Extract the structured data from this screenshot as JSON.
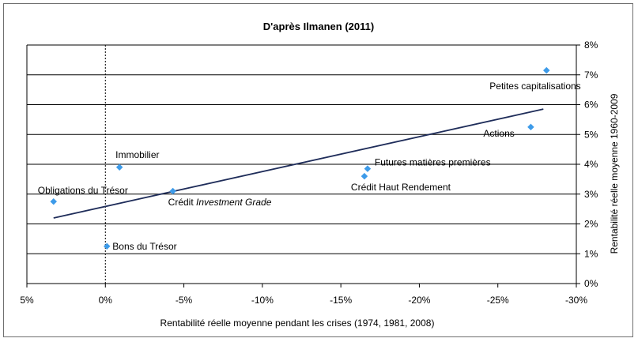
{
  "chart_data": {
    "type": "scatter",
    "title": "D'après Ilmanen (2011)",
    "xlabel": "Rentabilité réelle moyenne pendant les crises (1974, 1981, 2008)",
    "ylabel": "Rentabilité réelle moyenne 1960-2009",
    "x_ticks": [
      "5%",
      "0%",
      "-5%",
      "-10%",
      "-15%",
      "-20%",
      "-25%",
      "-30%"
    ],
    "y_ticks": [
      "0%",
      "1%",
      "2%",
      "3%",
      "4%",
      "5%",
      "6%",
      "7%",
      "8%"
    ],
    "xlim": [
      5,
      -30
    ],
    "ylim": [
      0,
      8
    ],
    "x_unit": "%",
    "y_unit": "%",
    "grid": "horizontal",
    "marker_color": "#3d9be9",
    "trend_color": "#1f2d5a",
    "points": [
      {
        "label": "Obligations du Trésor",
        "x": 3.3,
        "y": 2.75
      },
      {
        "label": "Bons du Trésor",
        "x": -0.1,
        "y": 1.25
      },
      {
        "label": "Immobilier",
        "x": -0.9,
        "y": 3.9
      },
      {
        "label": "Crédit ",
        "label_italic": "Investment Grade",
        "x": -4.3,
        "y": 3.1
      },
      {
        "label": "Crédit Haut Rendement",
        "x": -16.5,
        "y": 3.6
      },
      {
        "label": "Futures matières premières",
        "x": -16.7,
        "y": 3.85
      },
      {
        "label": "Actions",
        "x": -27.1,
        "y": 5.25
      },
      {
        "label": "Petites capitalisations",
        "x": -28.1,
        "y": 7.15
      }
    ],
    "trendline": {
      "x": [
        3.3,
        -27.9
      ],
      "y": [
        2.2,
        5.85
      ]
    }
  }
}
